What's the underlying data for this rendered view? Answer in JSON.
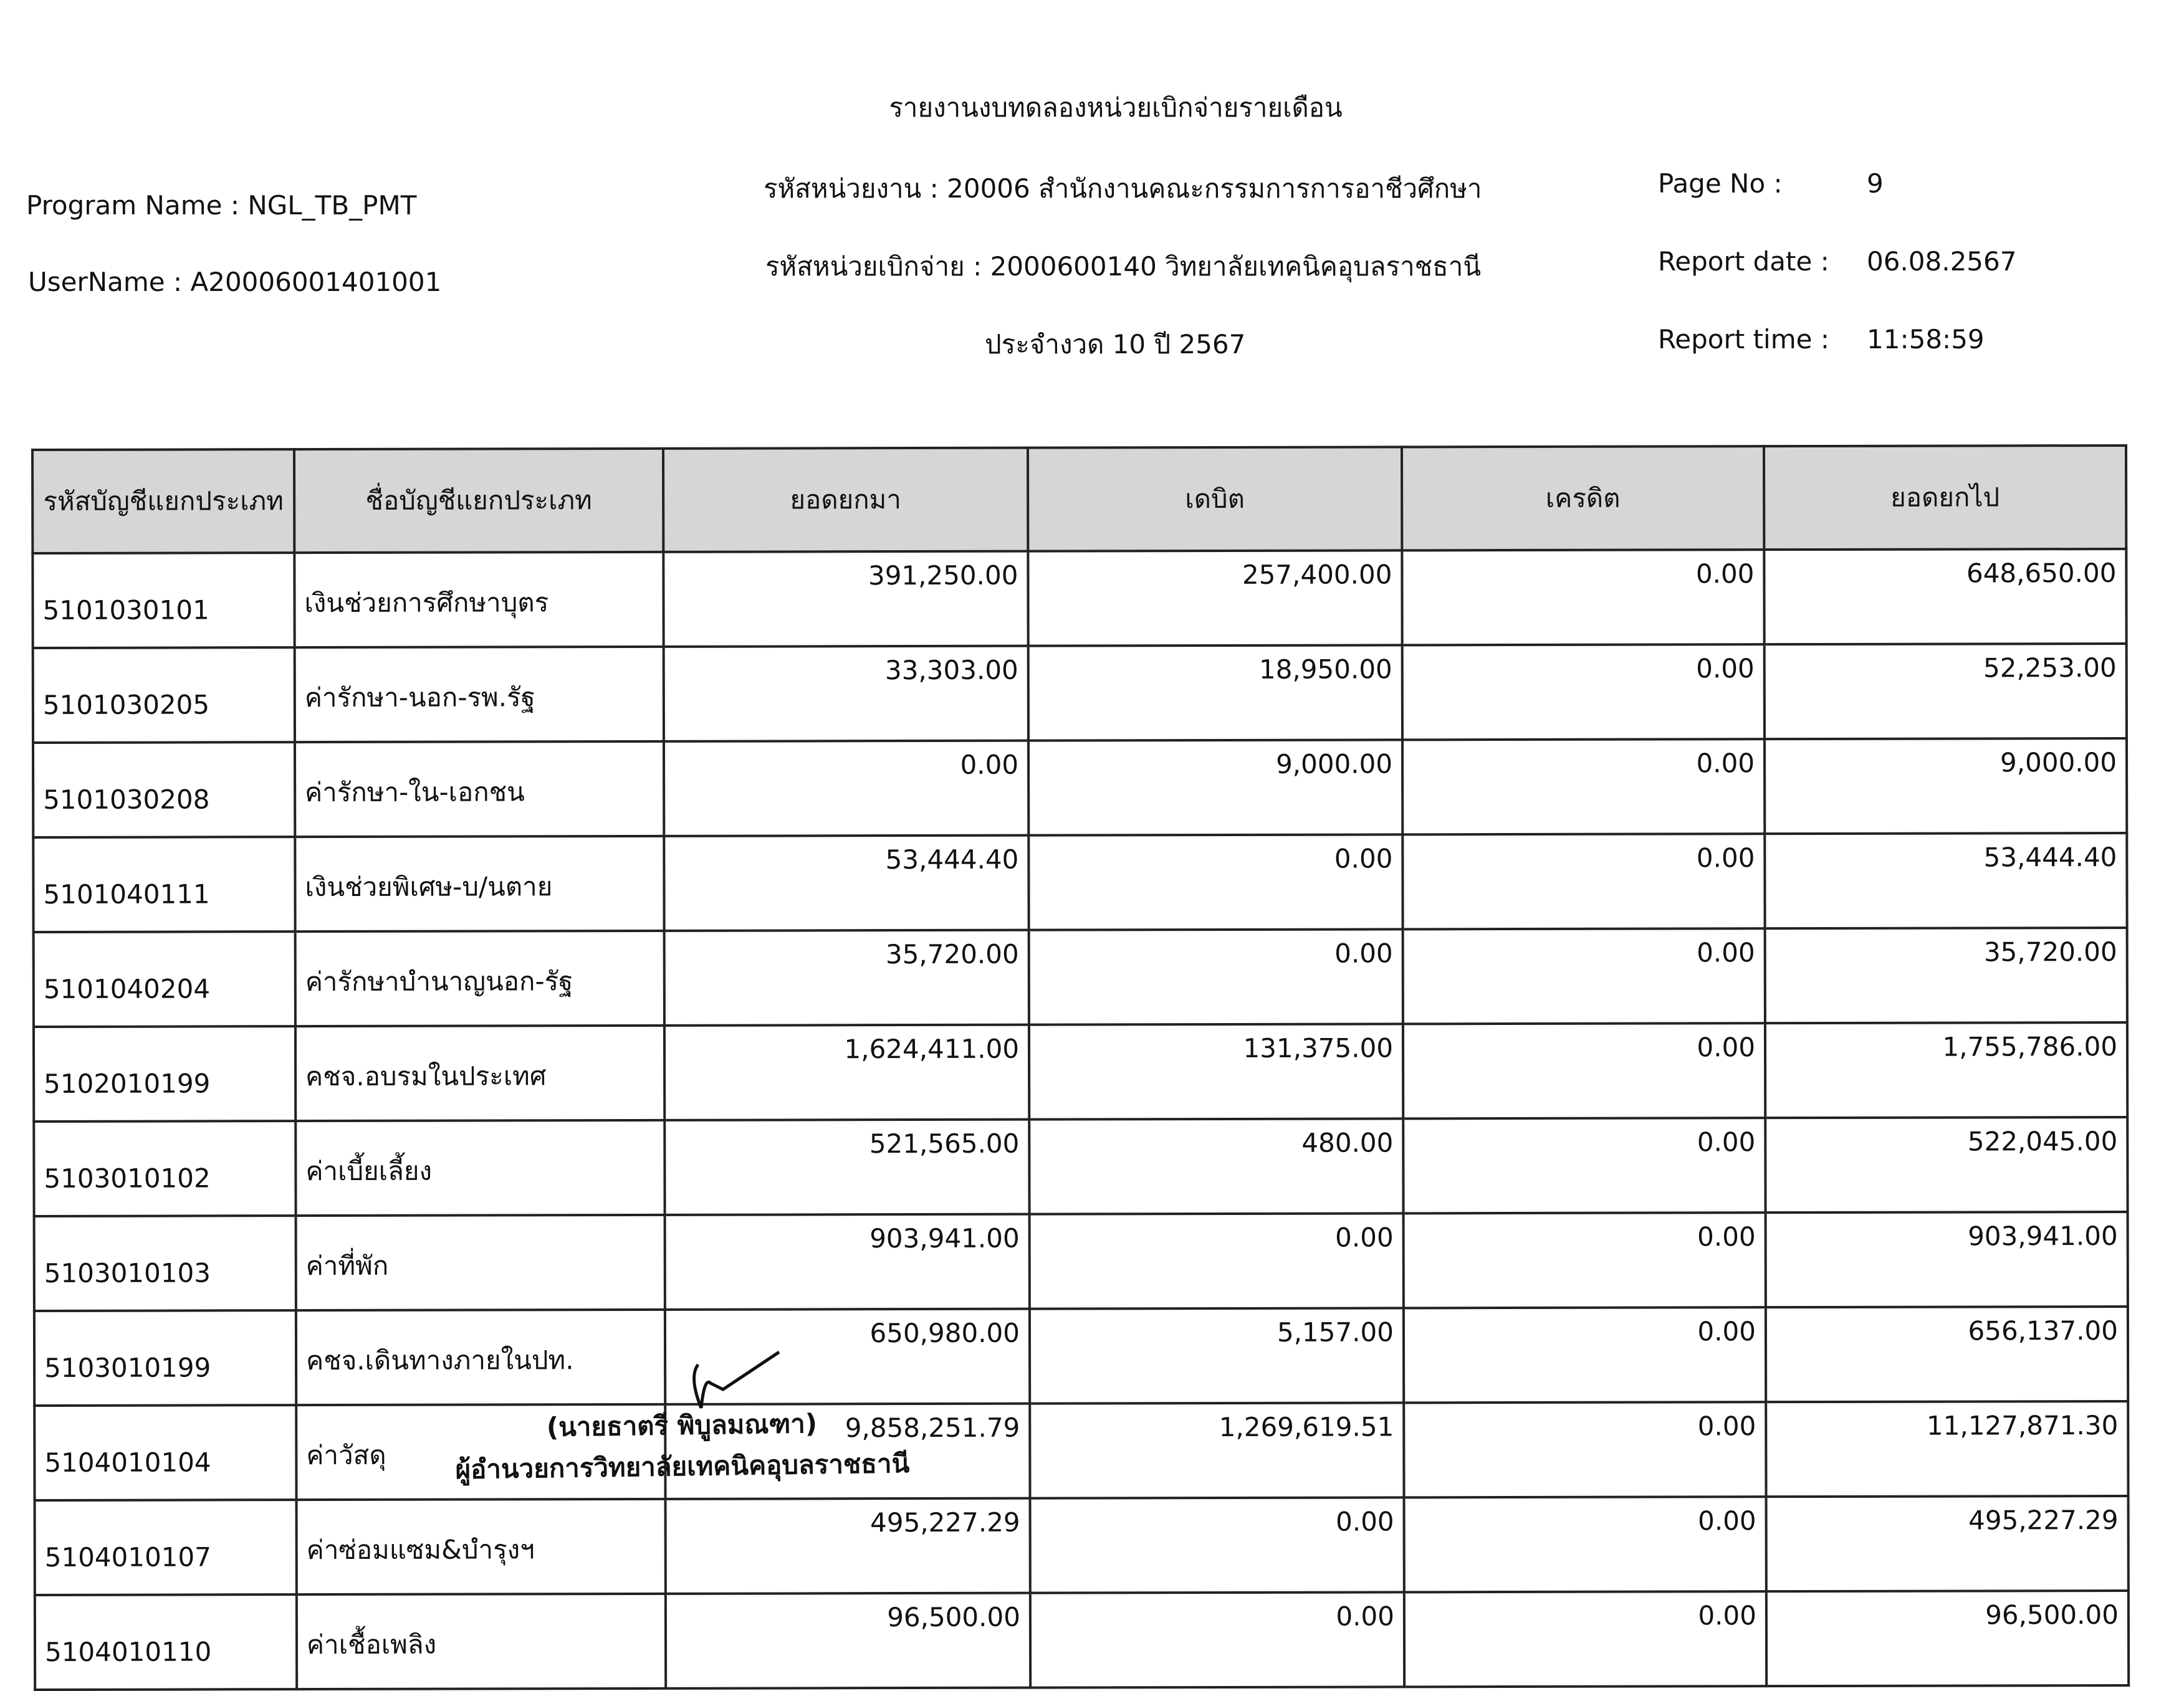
{
  "header": {
    "title": "รายงานงบทดลองหน่วยเบิกจ่ายรายเดือน",
    "program_name": "Program Name : NGL_TB_PMT",
    "user_name": "UserName : A20006001401001",
    "agency": "รหัสหน่วยงาน : 20006 สำนักงานคณะกรรมการการอาชีวศึกษา",
    "disbursing_unit": "รหัสหน่วยเบิกจ่าย : 2000600140 วิทยาลัยเทคนิคอุบลราชธานี",
    "period": "ประจำงวด 10 ปี 2567",
    "page_no_label": "Page No :",
    "page_no": "9",
    "report_date_label": "Report date :",
    "report_date": "06.08.2567",
    "report_time_label": "Report time :",
    "report_time": "11:58:59"
  },
  "table": {
    "columns": [
      "รหัสบัญชีแยกประเภท",
      "ชื่อบัญชีแยกประเภท",
      "ยอดยกมา",
      "เดบิต",
      "เครดิต",
      "ยอดยกไป"
    ],
    "rows": [
      [
        "5101030101",
        "เงินช่วยการศึกษาบุตร",
        "391,250.00",
        "257,400.00",
        "0.00",
        "648,650.00"
      ],
      [
        "5101030205",
        "ค่ารักษา-นอก-รพ.รัฐ",
        "33,303.00",
        "18,950.00",
        "0.00",
        "52,253.00"
      ],
      [
        "5101030208",
        "ค่ารักษา-ใน-เอกชน",
        "0.00",
        "9,000.00",
        "0.00",
        "9,000.00"
      ],
      [
        "5101040111",
        "เงินช่วยพิเศษ-บ/นตาย",
        "53,444.40",
        "0.00",
        "0.00",
        "53,444.40"
      ],
      [
        "5101040204",
        "ค่ารักษาบำนาญนอก-รัฐ",
        "35,720.00",
        "0.00",
        "0.00",
        "35,720.00"
      ],
      [
        "5102010199",
        "คชจ.อบรมในประเทศ",
        "1,624,411.00",
        "131,375.00",
        "0.00",
        "1,755,786.00"
      ],
      [
        "5103010102",
        "ค่าเบี้ยเลี้ยง",
        "521,565.00",
        "480.00",
        "0.00",
        "522,045.00"
      ],
      [
        "5103010103",
        "ค่าที่พัก",
        "903,941.00",
        "0.00",
        "0.00",
        "903,941.00"
      ],
      [
        "5103010199",
        "คชจ.เดินทางภายในปท.",
        "650,980.00",
        "5,157.00",
        "0.00",
        "656,137.00"
      ],
      [
        "5104010104",
        "ค่าวัสดุ",
        "9,858,251.79",
        "1,269,619.51",
        "0.00",
        "11,127,871.30"
      ],
      [
        "5104010107",
        "ค่าซ่อมแซม&บำรุงฯ",
        "495,227.29",
        "0.00",
        "0.00",
        "495,227.29"
      ],
      [
        "5104010110",
        "ค่าเชื้อเพลิง",
        "96,500.00",
        "0.00",
        "0.00",
        "96,500.00"
      ]
    ]
  },
  "stamp": {
    "name": "(นายธาตรี  พิบูลมณฑา)",
    "position": "ผู้อำนวยการวิทยาลัยเทคนิคอุบลราชธานี"
  }
}
